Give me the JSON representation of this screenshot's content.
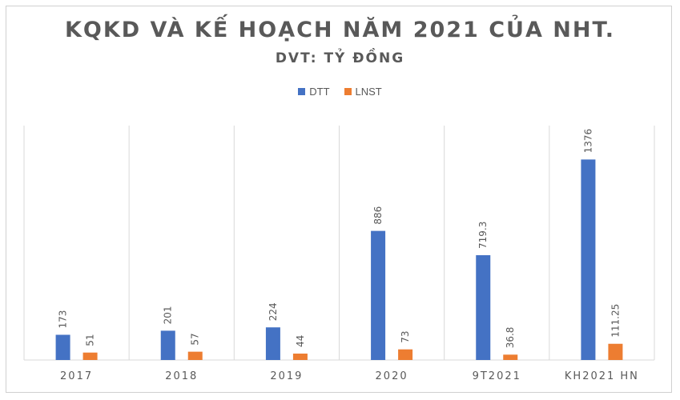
{
  "chart_data": {
    "type": "bar",
    "title": "KQKD VÀ KẾ HOẠCH NĂM 2021 CỦA NHT.",
    "subtitle": "DVT: TỶ ĐỒNG",
    "categories": [
      "2017",
      "2018",
      "2019",
      "2020",
      "9T2021",
      "KH2021 HN"
    ],
    "series": [
      {
        "name": "DTT",
        "color": "#4472C4",
        "values": [
          173,
          201,
          224,
          886,
          719.3,
          1376
        ],
        "labels": [
          "173",
          "201",
          "224",
          "886",
          "719.3",
          "1376"
        ]
      },
      {
        "name": "LNST",
        "color": "#ED7D31",
        "values": [
          51,
          57,
          44,
          73,
          36.8,
          111.25
        ],
        "labels": [
          "51",
          "57",
          "44",
          "73",
          "36.8",
          "111.25"
        ]
      }
    ],
    "ylim": [
      0,
      1400
    ],
    "legend_position": "top",
    "grid": "vertical category separators",
    "data_labels": "rotated vertical"
  }
}
